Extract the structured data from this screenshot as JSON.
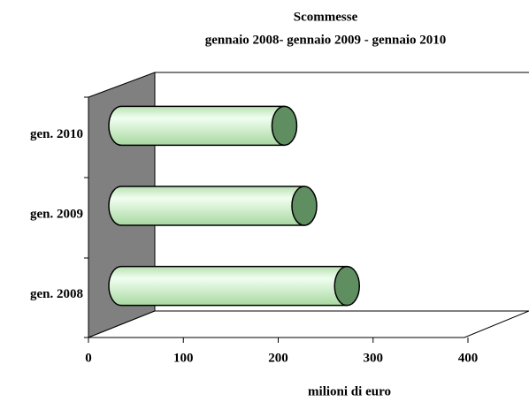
{
  "chart_data": {
    "type": "bar",
    "orientation": "horizontal",
    "title": "Scommesse",
    "subtitle": "gennaio 2008- gennaio 2009 - gennaio 2010",
    "x_label": "milioni di euro",
    "categories": [
      "gen. 2008",
      "gen. 2009",
      "gen. 2010"
    ],
    "values": [
      238,
      193,
      172
    ],
    "color": "#c8f0c0",
    "xlim": [
      0,
      400
    ],
    "xticks": [
      0,
      100,
      200,
      300,
      400
    ]
  }
}
